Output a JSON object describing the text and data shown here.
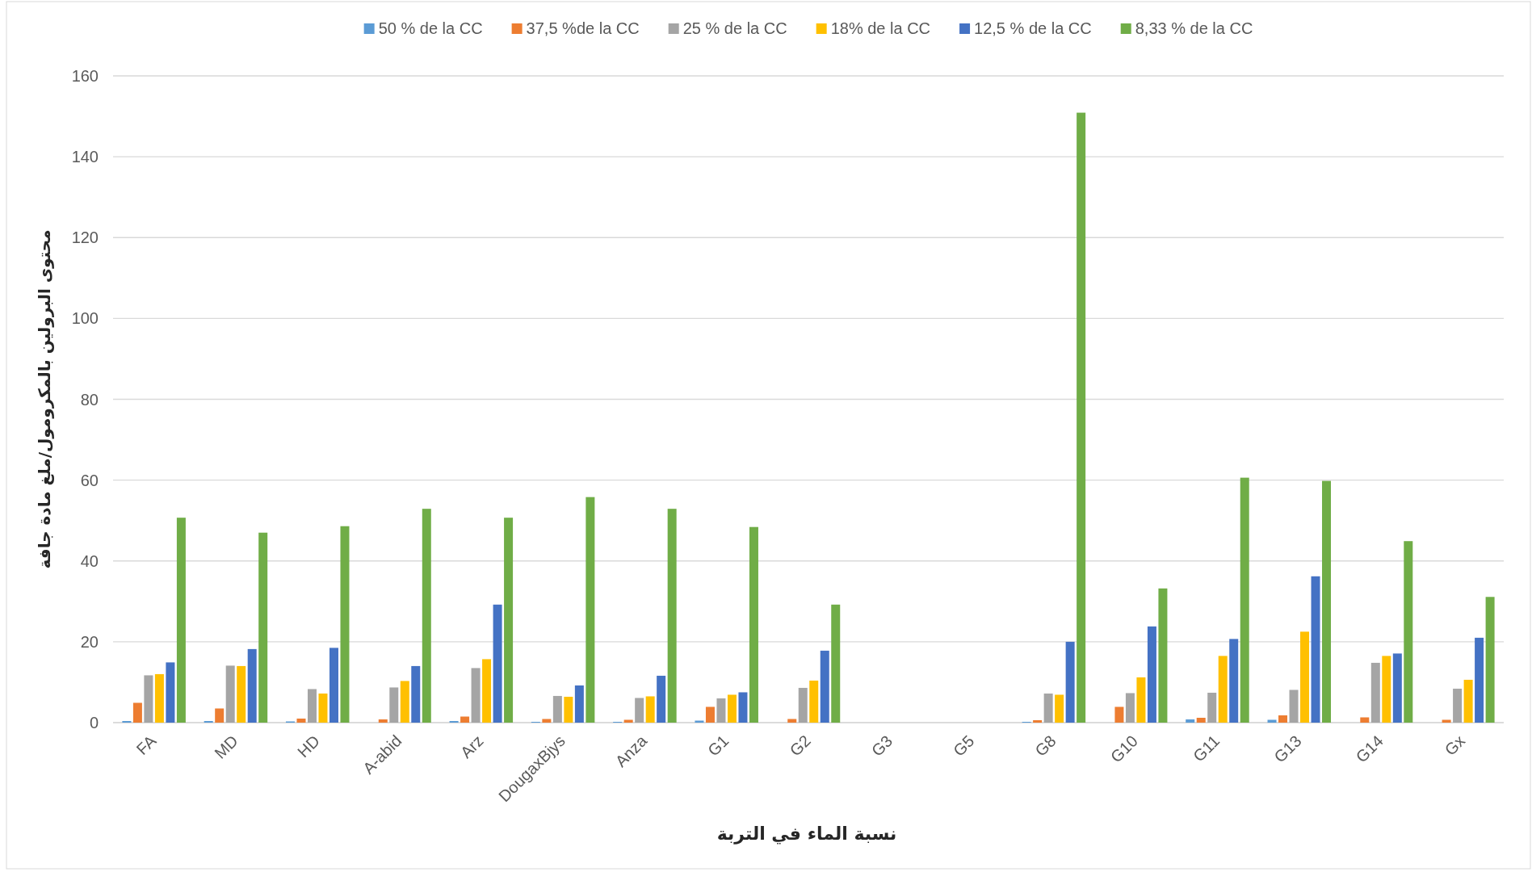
{
  "chart_data": {
    "type": "bar",
    "xlabel": "نسبة الماء في التربة",
    "ylabel": "محتوى البرولين بالمكرومول/ملغ مادة جافة",
    "categories": [
      "FA",
      "MD",
      "HD",
      "A-abid",
      "Arz",
      "DougaxBjys",
      "Anza",
      "G1",
      "G2",
      "G3",
      "G5",
      "G8",
      "G10",
      "G11",
      "G13",
      "G14",
      "Gx"
    ],
    "series": [
      {
        "name": "50 % de la CC",
        "color": "#5b9bd5",
        "values": [
          0.4,
          0.4,
          0.3,
          0,
          0.4,
          0.2,
          0.2,
          0.5,
          0,
          null,
          null,
          0.2,
          0,
          0.8,
          0.7,
          0,
          0
        ]
      },
      {
        "name": "37,5 %de la CC",
        "color": "#ed7d31",
        "values": [
          4.9,
          3.5,
          1.0,
          0.8,
          1.5,
          0.9,
          0.7,
          3.9,
          0.9,
          null,
          null,
          0.6,
          3.9,
          1.2,
          1.8,
          1.3,
          0.7
        ]
      },
      {
        "name": "25 % de la CC",
        "color": "#a5a5a5",
        "values": [
          11.7,
          14.1,
          8.3,
          8.7,
          13.5,
          6.6,
          6.1,
          6.0,
          8.6,
          null,
          null,
          7.2,
          7.3,
          7.4,
          8.1,
          14.8,
          8.4
        ]
      },
      {
        "name": "18% de la CC",
        "color": "#ffc000",
        "values": [
          12.0,
          14.0,
          7.2,
          10.3,
          15.7,
          6.4,
          6.5,
          6.9,
          10.4,
          null,
          null,
          6.9,
          11.2,
          16.5,
          22.5,
          16.5,
          10.6
        ]
      },
      {
        "name": "12,5 % de la CC",
        "color": "#4472c4",
        "values": [
          14.9,
          18.2,
          18.5,
          14.0,
          29.2,
          9.2,
          11.6,
          7.5,
          17.8,
          null,
          null,
          20.0,
          23.8,
          20.7,
          36.2,
          17.1,
          21.0
        ]
      },
      {
        "name": "8,33 % de la CC",
        "color": "#70ad47",
        "values": [
          50.7,
          47.0,
          48.6,
          52.9,
          50.7,
          55.8,
          52.9,
          48.4,
          29.2,
          null,
          null,
          150.9,
          33.2,
          60.6,
          59.8,
          44.9,
          31.1
        ]
      }
    ],
    "ylim": [
      0,
      160
    ],
    "yticks": [
      0,
      20,
      40,
      60,
      80,
      100,
      120,
      140,
      160
    ],
    "grid": "y",
    "legend": "top"
  }
}
